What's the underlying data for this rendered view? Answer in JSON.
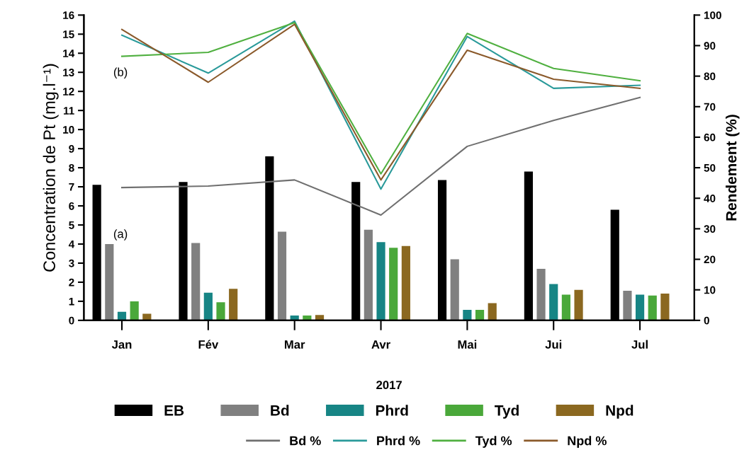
{
  "chart_data": {
    "type": "bar",
    "xlabel": "2017",
    "ylabel": "Concentration de Pt (mg.l⁻¹)",
    "y2label": "Rendement (%)",
    "categories": [
      "Jan",
      "Fév",
      "Mar",
      "Avr",
      "Mai",
      "Jui",
      "Jul"
    ],
    "series": [
      {
        "name": "EB",
        "color": "#000000",
        "values": [
          7.1,
          7.25,
          8.6,
          7.25,
          7.35,
          7.8,
          5.8
        ]
      },
      {
        "name": "Bd",
        "color": "#808080",
        "values": [
          4.0,
          4.05,
          4.65,
          4.75,
          3.2,
          2.7,
          1.55
        ]
      },
      {
        "name": "Phrd",
        "color": "#178585",
        "values": [
          0.45,
          1.45,
          0.25,
          4.1,
          0.55,
          1.9,
          1.35
        ]
      },
      {
        "name": "Tyd",
        "color": "#4aa83a",
        "values": [
          1.0,
          0.95,
          0.25,
          3.8,
          0.55,
          1.35,
          1.3
        ]
      },
      {
        "name": "Npd",
        "color": "#8b6820",
        "values": [
          0.35,
          1.65,
          0.28,
          3.9,
          0.9,
          1.6,
          1.4
        ]
      },
      {
        "name": "Bd %",
        "type": "line",
        "axis": "y2",
        "color": "#707070",
        "values": [
          43.5,
          44,
          46,
          34.5,
          57,
          65.5,
          73
        ]
      },
      {
        "name": "Phrd %",
        "type": "line",
        "axis": "y2",
        "color": "#2a9a9a",
        "values": [
          93.4,
          81,
          98,
          43,
          93,
          76,
          77
        ]
      },
      {
        "name": "Tyd %",
        "type": "line",
        "axis": "y2",
        "color": "#50b040",
        "values": [
          86.5,
          87.8,
          97.5,
          48,
          94,
          82.5,
          78.5
        ]
      },
      {
        "name": "Npd %",
        "type": "line",
        "axis": "y2",
        "color": "#8b5a2b",
        "values": [
          95.3,
          78,
          97,
          46,
          88.5,
          79,
          76
        ]
      }
    ],
    "ylim": [
      0,
      16
    ],
    "yticks": [
      0,
      1,
      2,
      3,
      4,
      5,
      6,
      7,
      8,
      9,
      10,
      11,
      12,
      13,
      14,
      15,
      16
    ],
    "y2lim": [
      0,
      100
    ],
    "y2ticks": [
      0,
      10,
      20,
      30,
      40,
      50,
      60,
      70,
      80,
      90,
      100
    ],
    "annotations": [
      "(a)",
      "(b)"
    ],
    "grid": false,
    "legend": "bottom"
  }
}
